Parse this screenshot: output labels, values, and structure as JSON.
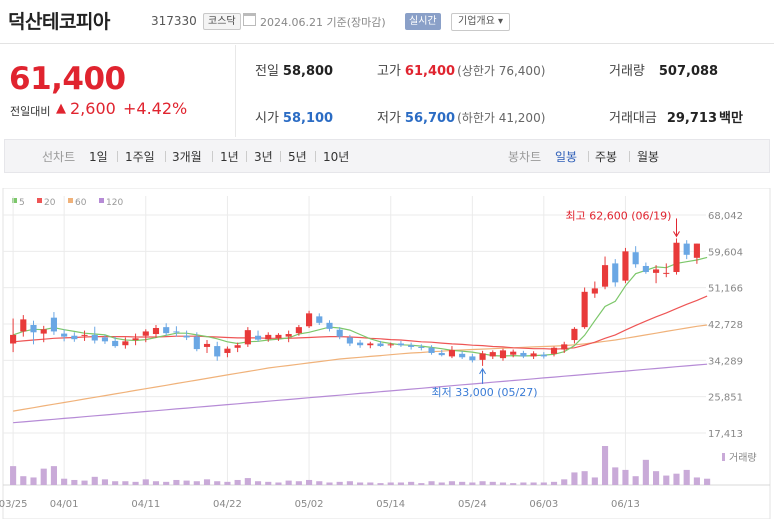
{
  "header": {
    "name": "덕산테코피아",
    "code": "317330",
    "market": "코스닥",
    "date_text": "2024.06.21 기준(장마감)",
    "realtime_label": "실시간",
    "corp_info_label": "기업개요"
  },
  "quote": {
    "price": "61,400",
    "diff_label": "전일대비",
    "diff_arrow": "▲",
    "diff_value": "2,600",
    "diff_pct": "+4.42%",
    "prev_label": "전일",
    "prev": "58,800",
    "high_label": "고가",
    "high": "61,400",
    "upper_limit": "(상한가 76,400)",
    "volume_label": "거래량",
    "volume": "507,088",
    "open_label": "시가",
    "open": "58,100",
    "low_label": "저가",
    "low": "56,700",
    "lower_limit": "(하한가 41,200)",
    "amount_label": "거래대금",
    "amount": "29,713",
    "amount_unit": "백만"
  },
  "periods": {
    "line_label": "선차트",
    "items": [
      "1일",
      "1주일",
      "3개월",
      "1년",
      "3년",
      "5년",
      "10년"
    ],
    "candle_label": "봉차트",
    "candle_items": [
      "일봉",
      "주봉",
      "월봉"
    ],
    "active_candle": "일봉"
  },
  "colors": {
    "up": "#e83a3a",
    "down": "#6aa7e4",
    "ma5": "#7cc76a",
    "ma20": "#ee5555",
    "ma60": "#f0b27a",
    "ma120": "#b68bd6",
    "volume": "#c9aad8",
    "grid": "#ebebeb"
  },
  "chart_data": {
    "type": "candlestick",
    "legend": [
      "5",
      "20",
      "60",
      "120"
    ],
    "y_ticks": [
      "68,042",
      "59,604",
      "51,166",
      "42,728",
      "34,289",
      "25,851",
      "17,413"
    ],
    "y_range": [
      17413,
      68042
    ],
    "x_labels": [
      "03/25",
      "04/01",
      "04/11",
      "04/22",
      "05/02",
      "05/14",
      "05/24",
      "06/03",
      "06/13"
    ],
    "x_label_days": [
      0,
      5,
      13,
      21,
      29,
      37,
      45,
      52,
      60
    ],
    "volume_label": "거래량",
    "max_annotation": "최고 62,600 (06/19)",
    "min_annotation": "최저 33,000 (05/27)",
    "candles": [
      {
        "o": 38200,
        "h": 44000,
        "l": 36200,
        "c": 40200
      },
      {
        "o": 41000,
        "h": 44800,
        "l": 39800,
        "c": 43800
      },
      {
        "o": 42500,
        "h": 43500,
        "l": 38000,
        "c": 40800
      },
      {
        "o": 40500,
        "h": 42300,
        "l": 38500,
        "c": 41500
      },
      {
        "o": 44200,
        "h": 45500,
        "l": 40200,
        "c": 41000
      },
      {
        "o": 40500,
        "h": 41500,
        "l": 38700,
        "c": 39800
      },
      {
        "o": 40000,
        "h": 40800,
        "l": 38600,
        "c": 39200
      },
      {
        "o": 40000,
        "h": 41200,
        "l": 38800,
        "c": 40200
      },
      {
        "o": 40200,
        "h": 42100,
        "l": 38200,
        "c": 38900
      },
      {
        "o": 39600,
        "h": 40200,
        "l": 38100,
        "c": 38700
      },
      {
        "o": 38800,
        "h": 39800,
        "l": 37200,
        "c": 37600
      },
      {
        "o": 37800,
        "h": 39600,
        "l": 37000,
        "c": 38700
      },
      {
        "o": 39000,
        "h": 40500,
        "l": 37800,
        "c": 39400
      },
      {
        "o": 40000,
        "h": 41500,
        "l": 38500,
        "c": 41000
      },
      {
        "o": 40400,
        "h": 42500,
        "l": 39500,
        "c": 41800
      },
      {
        "o": 42000,
        "h": 42900,
        "l": 40000,
        "c": 40600
      },
      {
        "o": 41000,
        "h": 42200,
        "l": 39800,
        "c": 40800
      },
      {
        "o": 40000,
        "h": 41200,
        "l": 39000,
        "c": 39600
      },
      {
        "o": 39800,
        "h": 40800,
        "l": 36400,
        "c": 36900
      },
      {
        "o": 37400,
        "h": 39000,
        "l": 36000,
        "c": 38100
      },
      {
        "o": 37600,
        "h": 38600,
        "l": 34200,
        "c": 35200
      },
      {
        "o": 36000,
        "h": 37500,
        "l": 35000,
        "c": 37000
      },
      {
        "o": 37200,
        "h": 38400,
        "l": 36200,
        "c": 37800
      },
      {
        "o": 38000,
        "h": 42000,
        "l": 37400,
        "c": 41300
      },
      {
        "o": 40000,
        "h": 41200,
        "l": 38600,
        "c": 39100
      },
      {
        "o": 39200,
        "h": 40800,
        "l": 38600,
        "c": 40200
      },
      {
        "o": 39400,
        "h": 40600,
        "l": 38800,
        "c": 40200
      },
      {
        "o": 39800,
        "h": 41200,
        "l": 38500,
        "c": 40400
      },
      {
        "o": 40600,
        "h": 42500,
        "l": 40000,
        "c": 42000
      },
      {
        "o": 42200,
        "h": 45800,
        "l": 41800,
        "c": 45200
      },
      {
        "o": 44500,
        "h": 45200,
        "l": 42500,
        "c": 43000
      },
      {
        "o": 43000,
        "h": 43600,
        "l": 41000,
        "c": 41600
      },
      {
        "o": 41400,
        "h": 42000,
        "l": 39200,
        "c": 39800
      },
      {
        "o": 39600,
        "h": 40200,
        "l": 37600,
        "c": 38200
      },
      {
        "o": 38400,
        "h": 39000,
        "l": 37200,
        "c": 37800
      },
      {
        "o": 37800,
        "h": 38600,
        "l": 37100,
        "c": 38200
      },
      {
        "o": 38200,
        "h": 38800,
        "l": 37400,
        "c": 37600
      },
      {
        "o": 37800,
        "h": 38400,
        "l": 37200,
        "c": 38000
      },
      {
        "o": 38200,
        "h": 38800,
        "l": 37400,
        "c": 37800
      },
      {
        "o": 37800,
        "h": 38400,
        "l": 36800,
        "c": 37400
      },
      {
        "o": 37400,
        "h": 38000,
        "l": 36600,
        "c": 37200
      },
      {
        "o": 37200,
        "h": 37800,
        "l": 35600,
        "c": 36000
      },
      {
        "o": 36000,
        "h": 36700,
        "l": 35200,
        "c": 35500
      },
      {
        "o": 35200,
        "h": 37600,
        "l": 34800,
        "c": 36700
      },
      {
        "o": 35800,
        "h": 36400,
        "l": 34600,
        "c": 35000
      },
      {
        "o": 35200,
        "h": 35800,
        "l": 33800,
        "c": 34300
      },
      {
        "o": 34400,
        "h": 36500,
        "l": 33000,
        "c": 35900
      },
      {
        "o": 35200,
        "h": 36600,
        "l": 34600,
        "c": 36200
      },
      {
        "o": 34800,
        "h": 37000,
        "l": 34200,
        "c": 36600
      },
      {
        "o": 35600,
        "h": 36800,
        "l": 35000,
        "c": 36300
      },
      {
        "o": 36000,
        "h": 36500,
        "l": 34800,
        "c": 35200
      },
      {
        "o": 35200,
        "h": 36400,
        "l": 34600,
        "c": 35900
      },
      {
        "o": 35600,
        "h": 36200,
        "l": 34700,
        "c": 35200
      },
      {
        "o": 35800,
        "h": 37500,
        "l": 35200,
        "c": 37200
      },
      {
        "o": 36800,
        "h": 38600,
        "l": 36000,
        "c": 38000
      },
      {
        "o": 39000,
        "h": 42000,
        "l": 38200,
        "c": 41600
      },
      {
        "o": 42000,
        "h": 51200,
        "l": 41600,
        "c": 50200
      },
      {
        "o": 49800,
        "h": 52600,
        "l": 48800,
        "c": 51000
      },
      {
        "o": 51400,
        "h": 58400,
        "l": 50800,
        "c": 56400
      },
      {
        "o": 56800,
        "h": 57800,
        "l": 51400,
        "c": 52400
      },
      {
        "o": 52800,
        "h": 60400,
        "l": 52200,
        "c": 59600
      },
      {
        "o": 59400,
        "h": 60800,
        "l": 55800,
        "c": 56600
      },
      {
        "o": 56200,
        "h": 57000,
        "l": 54400,
        "c": 54800
      },
      {
        "o": 54600,
        "h": 56400,
        "l": 52200,
        "c": 55400
      },
      {
        "o": 54600,
        "h": 56800,
        "l": 53600,
        "c": 54600
      },
      {
        "o": 54800,
        "h": 62600,
        "l": 54200,
        "c": 61600
      },
      {
        "o": 61400,
        "h": 62200,
        "l": 57800,
        "c": 58800
      },
      {
        "o": 58100,
        "h": 61400,
        "l": 56700,
        "c": 61400
      }
    ],
    "volumes": [
      30,
      14,
      12,
      26,
      30,
      10,
      8,
      7,
      13,
      9,
      6,
      6,
      5,
      9,
      6,
      5,
      8,
      7,
      6,
      9,
      6,
      5,
      8,
      11,
      6,
      5,
      4,
      7,
      6,
      8,
      6,
      4,
      5,
      6,
      4,
      4,
      3,
      4,
      4,
      5,
      3,
      6,
      4,
      6,
      5,
      4,
      6,
      5,
      4,
      3,
      4,
      4,
      4,
      5,
      9,
      20,
      22,
      12,
      62,
      28,
      24,
      14,
      40,
      22,
      15,
      18,
      24,
      12,
      10
    ],
    "ma5": [
      40200,
      41000,
      41500,
      41400,
      41900,
      41400,
      41000,
      40600,
      40400,
      40200,
      39400,
      39000,
      38900,
      39100,
      39600,
      40100,
      40600,
      40600,
      40200,
      39800,
      39300,
      38600,
      38200,
      38600,
      38700,
      39000,
      39200,
      39500,
      40400,
      40800,
      41400,
      42000,
      41800,
      41300,
      40300,
      39300,
      38600,
      38200,
      37900,
      37800,
      37600,
      37300,
      37000,
      36600,
      36400,
      36200,
      35800,
      35400,
      35300,
      35400,
      35300,
      35400,
      35500,
      35700,
      36300,
      37700,
      40100,
      43500,
      46800,
      48000,
      51600,
      54400,
      55200,
      56000,
      55800,
      56800,
      57200,
      57600,
      58200
    ],
    "ma20": [
      38600,
      38800,
      39000,
      39200,
      39400,
      39500,
      39600,
      39700,
      39800,
      39800,
      39800,
      39800,
      39700,
      39700,
      39700,
      39800,
      39900,
      39900,
      39900,
      39800,
      39700,
      39600,
      39500,
      39500,
      39500,
      39400,
      39400,
      39400,
      39500,
      39600,
      39700,
      39800,
      39800,
      39700,
      39600,
      39400,
      39300,
      39100,
      39000,
      38800,
      38600,
      38500,
      38300,
      38100,
      38000,
      37800,
      37700,
      37500,
      37400,
      37200,
      37100,
      37000,
      37000,
      36900,
      37000,
      37200,
      37800,
      38500,
      39400,
      40200,
      41300,
      42400,
      43400,
      44400,
      45300,
      46300,
      47300,
      48200,
      49200
    ],
    "ma60": [
      22500,
      22900,
      23300,
      23700,
      24100,
      24500,
      24900,
      25300,
      25700,
      26100,
      26500,
      26900,
      27300,
      27700,
      28100,
      28500,
      28900,
      29300,
      29700,
      30100,
      30500,
      30900,
      31300,
      31700,
      32100,
      32500,
      32800,
      33100,
      33400,
      33700,
      34000,
      34300,
      34600,
      34800,
      35000,
      35200,
      35400,
      35600,
      35800,
      36000,
      36100,
      36300,
      36400,
      36600,
      36700,
      36800,
      36900,
      37000,
      37100,
      37200,
      37300,
      37400,
      37500,
      37600,
      37700,
      37900,
      38100,
      38400,
      38700,
      39000,
      39400,
      39800,
      40200,
      40600,
      41000,
      41400,
      41800,
      42200,
      42500
    ],
    "ma120": [
      19800,
      20000,
      20200,
      20400,
      20600,
      20800,
      21000,
      21200,
      21400,
      21600,
      21800,
      22000,
      22200,
      22400,
      22600,
      22800,
      23000,
      23200,
      23400,
      23600,
      23800,
      24000,
      24200,
      24400,
      24600,
      24800,
      25000,
      25200,
      25400,
      25600,
      25800,
      26000,
      26200,
      26400,
      26600,
      26800,
      27000,
      27200,
      27400,
      27600,
      27800,
      28000,
      28200,
      28400,
      28600,
      28800,
      29000,
      29200,
      29400,
      29600,
      29800,
      30000,
      30200,
      30400,
      30600,
      30800,
      31000,
      31200,
      31400,
      31600,
      31800,
      32000,
      32200,
      32400,
      32600,
      32800,
      33000,
      33200,
      33400
    ]
  }
}
